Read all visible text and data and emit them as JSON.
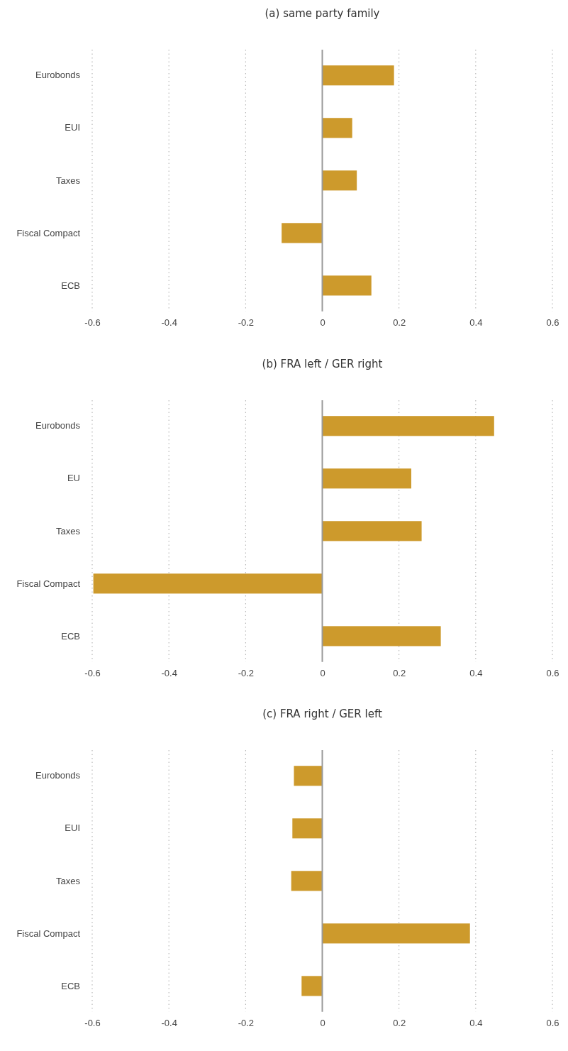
{
  "chart_data": [
    {
      "type": "bar",
      "orientation": "horizontal",
      "title": "(a) same party family",
      "categories": [
        "Eurobonds",
        "EUI",
        "Taxes",
        "Fiscal Compact",
        "ECB"
      ],
      "values": [
        0.187,
        0.078,
        0.09,
        -0.106,
        0.128
      ],
      "color": "#cd9a2c",
      "xlim": [
        -0.6,
        0.6
      ],
      "xticks": [
        -0.6,
        -0.4,
        -0.2,
        0,
        0.2,
        0.4,
        0.6
      ],
      "grid": "x"
    },
    {
      "type": "bar",
      "orientation": "horizontal",
      "title": "(b) FRA left / GER right",
      "categories": [
        "Eurobonds",
        "EU",
        "Taxes",
        "Fiscal Compact",
        "ECB"
      ],
      "values": [
        0.448,
        0.232,
        0.259,
        -0.597,
        0.309
      ],
      "color": "#cd9a2c",
      "xlim": [
        -0.6,
        0.6
      ],
      "xticks": [
        -0.6,
        -0.4,
        -0.2,
        0,
        0.2,
        0.4,
        0.6
      ],
      "grid": "x"
    },
    {
      "type": "bar",
      "orientation": "horizontal",
      "title": "(c) FRA right / GER left",
      "categories": [
        "Eurobonds",
        "EUI",
        "Taxes",
        "Fiscal Compact",
        "ECB"
      ],
      "values": [
        -0.074,
        -0.078,
        -0.081,
        0.385,
        -0.054
      ],
      "color": "#cd9a2c",
      "xlim": [
        -0.6,
        0.6
      ],
      "xticks": [
        -0.6,
        -0.4,
        -0.2,
        0,
        0.2,
        0.4,
        0.6
      ],
      "grid": "x"
    }
  ]
}
